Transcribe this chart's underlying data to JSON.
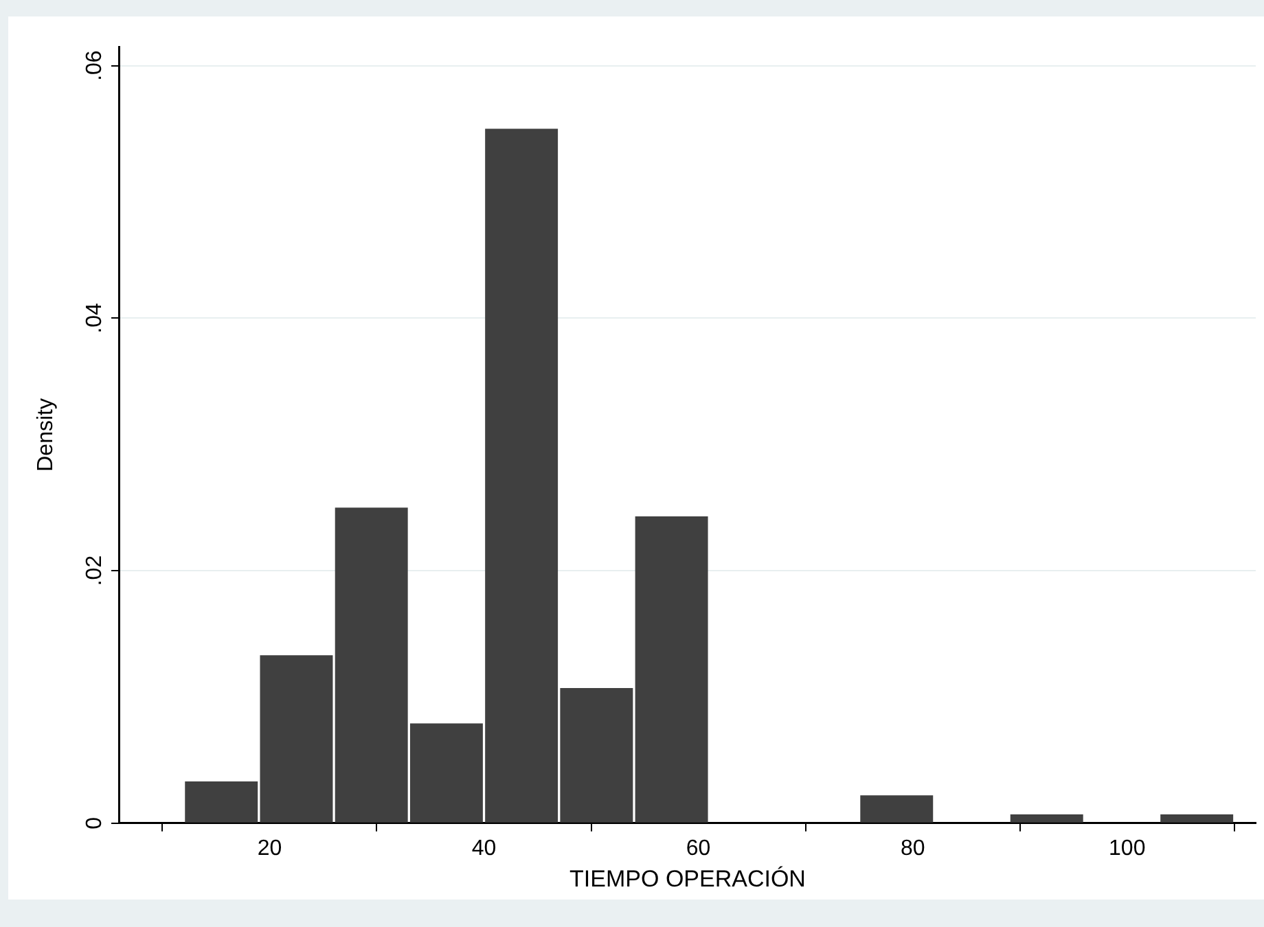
{
  "chart_data": {
    "type": "histogram",
    "xlabel": "TIEMPO OPERACIÓN",
    "ylabel": "Density",
    "bins": [
      12,
      19,
      26,
      33,
      40,
      47,
      54,
      61,
      68,
      75,
      82,
      89,
      96,
      103,
      110
    ],
    "values": [
      0.0033,
      0.0133,
      0.025,
      0.0079,
      0.055,
      0.0107,
      0.0243,
      0,
      0,
      0.0022,
      0,
      0.0007,
      0,
      0.0007
    ],
    "color": "#404040",
    "xlim": [
      6,
      112
    ],
    "xticks": [
      20,
      40,
      60,
      80,
      100
    ],
    "ylim": [
      0,
      0.0615
    ],
    "yticks": [
      0,
      {
        "value": 0.02,
        "label": ".02"
      },
      {
        "value": 0.04,
        "label": ".04"
      },
      {
        "value": 0.06,
        "label": ".06"
      }
    ],
    "grid": "y"
  }
}
